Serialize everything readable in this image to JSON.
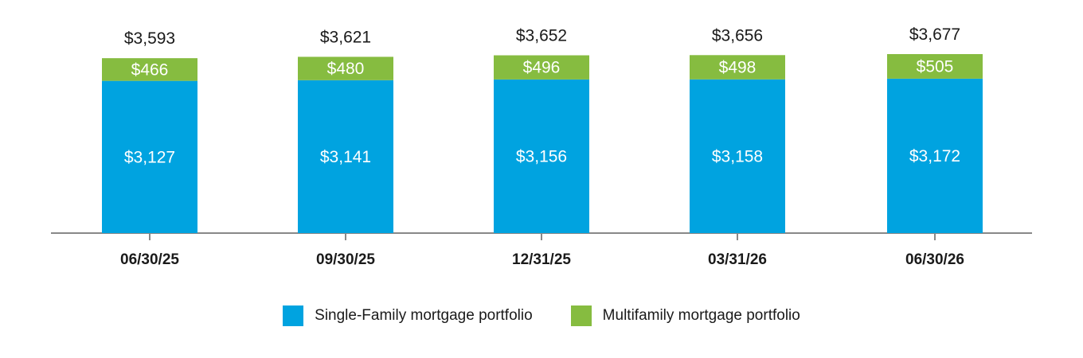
{
  "chart_data": {
    "type": "bar",
    "stacked": true,
    "categories": [
      "06/30/25",
      "09/30/25",
      "12/31/25",
      "03/31/26",
      "06/30/26"
    ],
    "series": [
      {
        "name": "Single-Family mortgage portfolio",
        "values": [
          3127,
          3141,
          3156,
          3158,
          3172
        ],
        "labels": [
          "$3,127",
          "$3,141",
          "$3,156",
          "$3,158",
          "$3,172"
        ],
        "color": "#00a3e0"
      },
      {
        "name": "Multifamily mortgage portfolio",
        "values": [
          466,
          480,
          496,
          498,
          505
        ],
        "labels": [
          "$466",
          "$480",
          "$496",
          "$498",
          "$505"
        ],
        "color": "#86bc40"
      }
    ],
    "totals": [
      3593,
      3621,
      3652,
      3656,
      3677
    ],
    "total_labels": [
      "$3,593",
      "$3,621",
      "$3,652",
      "$3,656",
      "$3,677"
    ],
    "legend_placement": "bottom-center",
    "grid": false,
    "axis_color": "#888888"
  }
}
